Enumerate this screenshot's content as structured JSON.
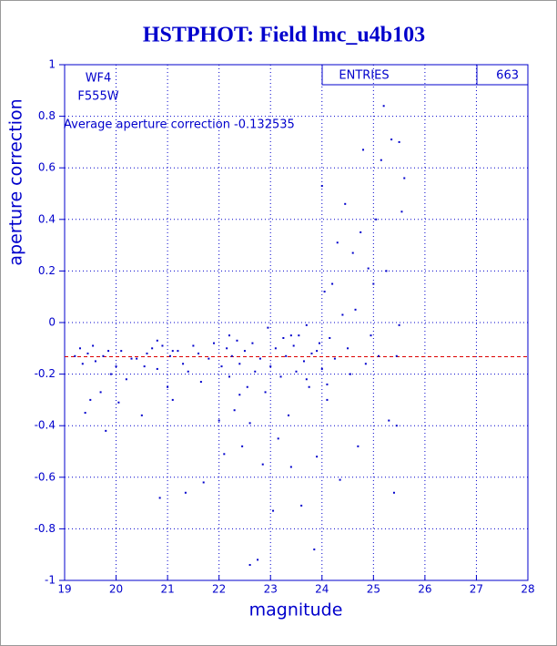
{
  "chart_data": {
    "type": "scatter",
    "title": "HSTPHOT: Field lmc_u4b103",
    "x_label": "magnitude",
    "y_label": "aperture correction",
    "annotations": [
      "WF4",
      "F555W",
      "Average aperture correction -0.132535"
    ],
    "stats": {
      "label": "ENTRIES",
      "value": 663
    },
    "reference_line": {
      "value": -0.132535,
      "color": "#dd0000"
    },
    "xlim": [
      19,
      28
    ],
    "ylim": [
      -1,
      1
    ],
    "xticks": [
      19,
      20,
      21,
      22,
      23,
      24,
      25,
      26,
      27,
      28
    ],
    "yticks": [
      -1,
      -0.8,
      -0.6,
      -0.4,
      -0.2,
      0,
      0.2,
      0.4,
      0.6,
      0.8,
      1
    ],
    "grid": true,
    "color": "#0000cc",
    "x": [
      19.2,
      19.3,
      19.35,
      19.4,
      19.45,
      19.5,
      19.55,
      19.6,
      19.7,
      19.75,
      19.8,
      19.85,
      19.9,
      20.0,
      20.05,
      20.1,
      20.2,
      20.3,
      20.4,
      20.5,
      20.55,
      20.6,
      20.7,
      20.8,
      20.85,
      20.9,
      21.0,
      21.05,
      21.1,
      21.2,
      21.3,
      21.35,
      21.4,
      21.5,
      21.6,
      21.65,
      21.7,
      21.8,
      21.9,
      22.0,
      22.05,
      22.1,
      22.15,
      22.2,
      22.25,
      22.3,
      22.35,
      22.4,
      22.45,
      22.5,
      22.55,
      22.6,
      22.6,
      22.65,
      22.7,
      22.75,
      22.8,
      22.85,
      22.9,
      22.95,
      23.0,
      23.05,
      23.1,
      23.15,
      23.2,
      23.25,
      23.3,
      23.35,
      23.4,
      23.45,
      23.5,
      23.55,
      23.6,
      23.65,
      23.7,
      23.75,
      23.8,
      23.85,
      23.9,
      23.95,
      24.0,
      24.0,
      24.05,
      24.1,
      24.15,
      24.2,
      24.25,
      24.3,
      24.35,
      24.4,
      24.45,
      24.5,
      24.55,
      24.6,
      24.65,
      24.7,
      24.75,
      24.8,
      24.85,
      24.9,
      24.95,
      25.0,
      25.05,
      25.1,
      25.15,
      25.2,
      25.25,
      25.3,
      25.35,
      25.4,
      25.45,
      25.5,
      25.55,
      25.6,
      25.5,
      25.45,
      23.4,
      22.2,
      21.1,
      24.1,
      23.9,
      22.4,
      23.7,
      20.8
    ],
    "y": [
      -0.13,
      -0.1,
      -0.16,
      -0.35,
      -0.12,
      -0.3,
      -0.09,
      -0.15,
      -0.27,
      -0.13,
      -0.42,
      -0.11,
      -0.2,
      -0.17,
      -0.31,
      -0.11,
      -0.22,
      -0.14,
      -0.14,
      -0.36,
      -0.17,
      -0.12,
      -0.1,
      -0.18,
      -0.68,
      -0.09,
      -0.25,
      -0.13,
      -0.3,
      -0.11,
      -0.16,
      -0.66,
      -0.19,
      -0.09,
      -0.12,
      -0.23,
      -0.62,
      -0.14,
      -0.08,
      -0.38,
      -0.17,
      -0.51,
      -0.1,
      -0.21,
      -0.13,
      -0.34,
      -0.07,
      -0.16,
      -0.48,
      -0.11,
      -0.25,
      -0.94,
      -0.39,
      -0.08,
      -0.19,
      -0.92,
      -0.14,
      -0.55,
      -0.27,
      -0.02,
      -0.17,
      -0.73,
      -0.1,
      -0.45,
      -0.21,
      -0.06,
      -0.13,
      -0.36,
      -0.56,
      -0.09,
      -0.19,
      -0.05,
      -0.71,
      -0.15,
      -0.01,
      -0.25,
      -0.12,
      -0.88,
      -0.52,
      -0.08,
      0.53,
      -0.18,
      0.12,
      -0.3,
      -0.06,
      0.15,
      -0.14,
      0.31,
      -0.61,
      0.03,
      0.46,
      -0.1,
      -0.2,
      0.27,
      0.05,
      -0.48,
      0.35,
      0.67,
      -0.16,
      0.21,
      -0.05,
      0.15,
      0.4,
      -0.13,
      0.63,
      0.84,
      0.2,
      -0.38,
      0.71,
      -0.66,
      -0.13,
      0.7,
      0.43,
      0.56,
      -0.01,
      -0.4,
      -0.05,
      -0.05,
      -0.11,
      -0.24,
      -0.11,
      -0.28,
      -0.22,
      -0.07
    ]
  }
}
